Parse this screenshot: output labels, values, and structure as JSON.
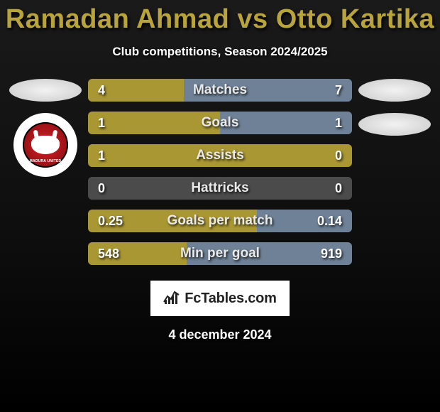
{
  "title_color": "#b8a43a",
  "player1": {
    "name": "Ramadan Ahmad",
    "crest_label": "MADURA UNITED"
  },
  "player2": {
    "name": "Otto Kartika"
  },
  "title_sep": " vs ",
  "subtitle": "Club competitions, Season 2024/2025",
  "date": "4 december 2024",
  "branding": {
    "text": "FcTables.com"
  },
  "colors": {
    "bar_p1": "#a99733",
    "bar_p2": "#6e8196",
    "bar_neutral": "#4b4b4b",
    "row_bg": "#585858"
  },
  "stats": [
    {
      "label": "Matches",
      "v1": "4",
      "v2": "7",
      "n1": 4,
      "n2": 7
    },
    {
      "label": "Goals",
      "v1": "1",
      "v2": "1",
      "n1": 1,
      "n2": 1
    },
    {
      "label": "Assists",
      "v1": "1",
      "v2": "0",
      "n1": 1,
      "n2": 0
    },
    {
      "label": "Hattricks",
      "v1": "0",
      "v2": "0",
      "n1": 0,
      "n2": 0
    },
    {
      "label": "Goals per match",
      "v1": "0.25",
      "v2": "0.14",
      "n1": 0.25,
      "n2": 0.14
    },
    {
      "label": "Min per goal",
      "v1": "548",
      "v2": "919",
      "n1": 548,
      "n2": 919
    }
  ]
}
